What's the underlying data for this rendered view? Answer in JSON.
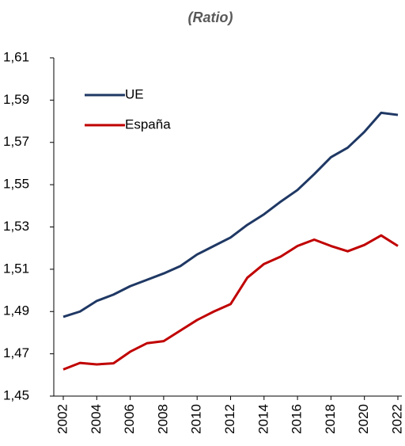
{
  "chart_data": {
    "type": "line",
    "title": "(Ratio)",
    "x": [
      2002,
      2003,
      2004,
      2005,
      2006,
      2007,
      2008,
      2009,
      2010,
      2011,
      2012,
      2013,
      2014,
      2015,
      2016,
      2017,
      2018,
      2019,
      2020,
      2021,
      2022
    ],
    "series": [
      {
        "name": "UE",
        "color": "#1f3864",
        "values": [
          1.4875,
          1.49,
          1.495,
          1.498,
          1.502,
          1.505,
          1.508,
          1.5115,
          1.517,
          1.521,
          1.525,
          1.531,
          1.536,
          1.542,
          1.5475,
          1.555,
          1.563,
          1.5675,
          1.575,
          1.584,
          1.583
        ]
      },
      {
        "name": "España",
        "color": "#c00000",
        "values": [
          1.4626,
          1.4657,
          1.465,
          1.4655,
          1.471,
          1.475,
          1.476,
          1.481,
          1.486,
          1.49,
          1.4935,
          1.506,
          1.5125,
          1.516,
          1.521,
          1.524,
          1.521,
          1.5185,
          1.5215,
          1.526,
          1.521
        ]
      }
    ],
    "xlim": [
      2002,
      2022
    ],
    "xticks": [
      2002,
      2004,
      2006,
      2008,
      2010,
      2012,
      2014,
      2016,
      2018,
      2020,
      2022
    ],
    "ylim": [
      1.45,
      1.61
    ],
    "yticks": [
      {
        "value": 1.45,
        "label": "1,45"
      },
      {
        "value": 1.47,
        "label": "1,47"
      },
      {
        "value": 1.49,
        "label": "1,49"
      },
      {
        "value": 1.51,
        "label": "1,51"
      },
      {
        "value": 1.53,
        "label": "1,53"
      },
      {
        "value": 1.55,
        "label": "1,55"
      },
      {
        "value": 1.57,
        "label": "1,57"
      },
      {
        "value": 1.59,
        "label": "1,59"
      },
      {
        "value": 1.61,
        "label": "1,61"
      }
    ],
    "legend": "top-left",
    "grid": false
  }
}
